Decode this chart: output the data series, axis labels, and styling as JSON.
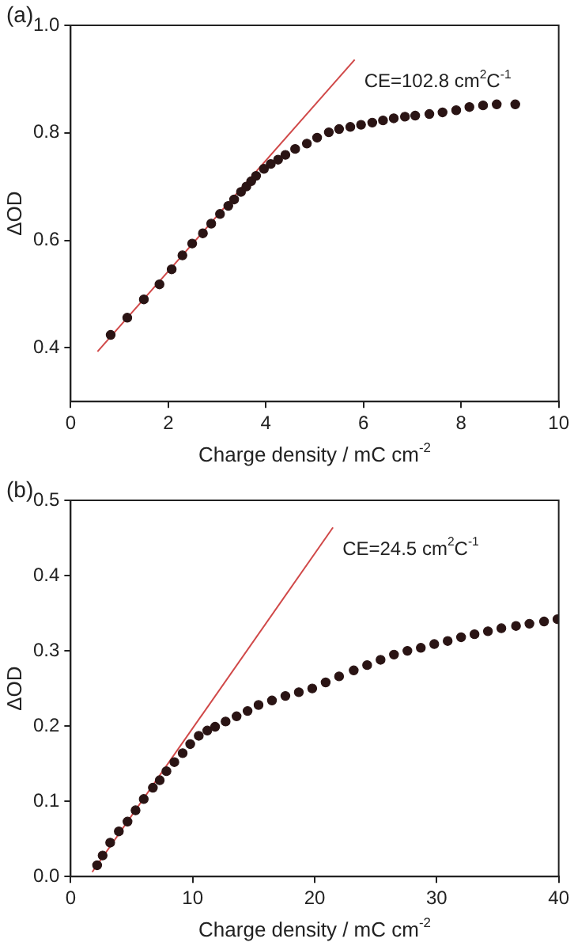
{
  "chart_data": [
    {
      "type": "scatter",
      "title": "(a)",
      "xlabel": "Charge density / mC cm$^{-2}$",
      "ylabel": "ΔOD",
      "xlim": [
        0,
        10
      ],
      "xticks": [
        0,
        2,
        4,
        6,
        8,
        10
      ],
      "ylim": [
        0.3,
        1.0
      ],
      "yticks": [
        0.4,
        0.6,
        0.8,
        {
          "value": 1.0,
          "label": "1.0"
        }
      ],
      "marker": "circle",
      "legend": false,
      "series": [
        {
          "color": "#2a1414",
          "x": [
            0.82,
            1.16,
            1.5,
            1.82,
            2.07,
            2.29,
            2.49,
            2.71,
            2.88,
            3.06,
            3.23,
            3.35,
            3.49,
            3.6,
            3.7,
            3.8,
            3.96,
            4.1,
            4.25,
            4.4,
            4.6,
            4.84,
            5.05,
            5.29,
            5.5,
            5.73,
            5.95,
            6.18,
            6.4,
            6.62,
            6.85,
            7.06,
            7.35,
            7.62,
            7.9,
            8.17,
            8.45,
            8.73,
            9.11
          ],
          "values": [
            0.424,
            0.456,
            0.49,
            0.518,
            0.546,
            0.572,
            0.594,
            0.613,
            0.631,
            0.649,
            0.664,
            0.676,
            0.69,
            0.7,
            0.71,
            0.72,
            0.733,
            0.742,
            0.75,
            0.759,
            0.77,
            0.78,
            0.791,
            0.801,
            0.807,
            0.811,
            0.815,
            0.819,
            0.823,
            0.827,
            0.83,
            0.832,
            0.835,
            0.838,
            0.842,
            0.848,
            0.851,
            0.853,
            0.853
          ]
        },
        {
          "type": "line",
          "color": "#d04848",
          "marker": "none",
          "line_style": "solid",
          "x": [
            0.55,
            5.82
          ],
          "values": [
            0.393,
            0.936
          ]
        }
      ],
      "annotations": [
        "CE=102.8 cm$^{2}$C$^{-1}$"
      ]
    },
    {
      "type": "scatter",
      "title": "(b)",
      "xlabel": "Charge density / mC cm$^{-2}$",
      "ylabel": "ΔOD",
      "xlim": [
        0,
        40
      ],
      "xticks": [
        0,
        10,
        20,
        30,
        40
      ],
      "ylim": [
        0,
        0.5
      ],
      "yticks": [
        {
          "value": 0,
          "label": "0.0"
        },
        0.1,
        0.2,
        0.3,
        0.4,
        0.5
      ],
      "marker": "circle",
      "legend": false,
      "series": [
        {
          "color": "#2a1414",
          "x": [
            2.17,
            2.62,
            3.24,
            3.95,
            4.66,
            5.32,
            5.99,
            6.74,
            7.3,
            7.85,
            8.5,
            9.18,
            9.8,
            10.5,
            11.2,
            11.84,
            12.7,
            13.6,
            14.5,
            15.4,
            16.5,
            17.6,
            18.7,
            19.8,
            20.9,
            22.0,
            23.2,
            24.3,
            25.4,
            26.5,
            27.6,
            28.7,
            29.8,
            30.9,
            32.0,
            33.1,
            34.2,
            35.3,
            36.5,
            37.6,
            38.8,
            39.9
          ],
          "values": [
            0.015,
            0.028,
            0.045,
            0.06,
            0.073,
            0.088,
            0.103,
            0.118,
            0.128,
            0.14,
            0.152,
            0.164,
            0.176,
            0.187,
            0.194,
            0.199,
            0.206,
            0.213,
            0.22,
            0.228,
            0.234,
            0.24,
            0.245,
            0.25,
            0.258,
            0.266,
            0.274,
            0.281,
            0.288,
            0.295,
            0.3,
            0.304,
            0.309,
            0.313,
            0.318,
            0.322,
            0.326,
            0.33,
            0.333,
            0.336,
            0.339,
            0.342
          ]
        },
        {
          "type": "line",
          "color": "#d04848",
          "marker": "none",
          "line_style": "solid",
          "x": [
            1.77,
            21.5
          ],
          "values": [
            0.006,
            0.464
          ]
        }
      ],
      "annotations": [
        "CE=24.5 cm$^{2}$C$^{-1}$"
      ]
    }
  ]
}
